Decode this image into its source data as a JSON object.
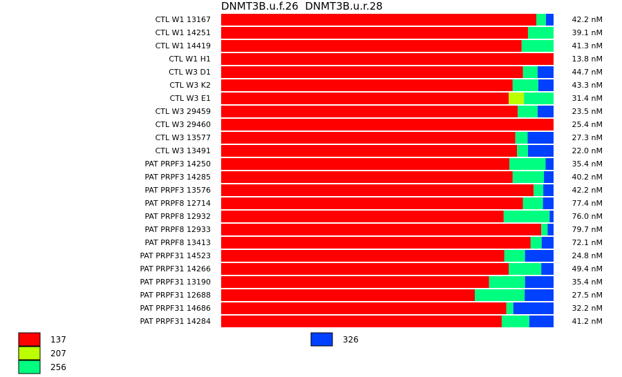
{
  "chart_data": {
    "type": "bar",
    "orientation": "horizontal",
    "stacked": "normalized",
    "title": "DNMT3B.u.f.26  DNMT3B.u.r.28",
    "categories": [
      "CTL W1 13167",
      "CTL W1 14251",
      "CTL W1 14419",
      "CTL W1 H1",
      "CTL W3 D1",
      "CTL W3 K2",
      "CTL W3 E1",
      "CTL W3 29459",
      "CTL W3 29460",
      "CTL W3 13577",
      "CTL W3 13491",
      "PAT PRPF3 14250",
      "PAT PRPF3 14285",
      "PAT PRPF3 13576",
      "PAT PRPF8 12714",
      "PAT PRPF8 12932",
      "PAT PRPF8 12933",
      "PAT PRPF8 13413",
      "PAT PRPF31 14523",
      "PAT PRPF31 14266",
      "PAT PRPF31 13190",
      "PAT PRPF31 12688",
      "PAT PRPF31 14686",
      "PAT PRPF31 14284"
    ],
    "row_values": [
      "42.2 nM",
      "39.1 nM",
      "41.3 nM",
      "13.8 nM",
      "44.7 nM",
      "43.3 nM",
      "31.4 nM",
      "23.5 nM",
      "25.4 nM",
      "27.3 nM",
      "22.0 nM",
      "35.4 nM",
      "40.2 nM",
      "42.2 nM",
      "77.4 nM",
      "76.0 nM",
      "79.7 nM",
      "72.1 nM",
      "24.8 nM",
      "49.4 nM",
      "35.4 nM",
      "27.5 nM",
      "32.2 nM",
      "41.2 nM"
    ],
    "series": [
      {
        "name": "137",
        "color": "#ff0000",
        "values": [
          94.8,
          92.3,
          90.4,
          100,
          90.8,
          87.7,
          86.5,
          89.2,
          100,
          88.5,
          89.0,
          86.7,
          87.7,
          94.0,
          90.8,
          85.0,
          96.3,
          93.1,
          85.2,
          86.5,
          80.6,
          76.3,
          85.8,
          84.4
        ]
      },
      {
        "name": "207",
        "color": "#bbff00",
        "values": [
          0,
          0,
          0,
          0,
          0,
          0,
          4.6,
          0,
          0,
          0,
          0,
          0,
          0,
          0,
          0,
          0,
          0,
          0,
          0,
          0,
          0,
          0,
          0,
          0
        ]
      },
      {
        "name": "256",
        "color": "#00ff80",
        "values": [
          2.9,
          7.7,
          9.6,
          0,
          4.4,
          7.7,
          8.9,
          6.0,
          0,
          3.7,
          3.3,
          10.9,
          9.4,
          2.9,
          6.0,
          13.8,
          1.9,
          3.3,
          6.2,
          9.8,
          10.8,
          15.0,
          2.1,
          8.3
        ]
      },
      {
        "name": "326",
        "color": "#0040ff",
        "values": [
          2.3,
          0,
          0,
          0,
          4.8,
          4.6,
          0,
          4.8,
          0,
          7.8,
          7.7,
          2.4,
          2.9,
          3.1,
          3.2,
          1.2,
          1.8,
          3.6,
          8.6,
          3.7,
          8.6,
          8.7,
          12.1,
          7.3
        ]
      }
    ],
    "legend": "bottom",
    "grid": false
  }
}
